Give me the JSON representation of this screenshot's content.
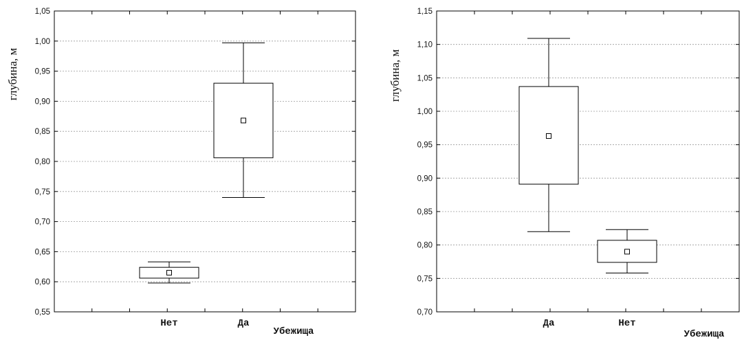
{
  "chart_data": [
    {
      "type": "boxplot",
      "xlabel": "Убежища",
      "ylabel": "глубина, м",
      "ylim": [
        0.55,
        1.05
      ],
      "ytick_step": 0.05,
      "ytick_labels": [
        "0,55",
        "0,60",
        "0,65",
        "0,70",
        "0,75",
        "0,80",
        "0,85",
        "0,90",
        "0,95",
        "1,00",
        "1,05"
      ],
      "grid": true,
      "categories": [
        "Нет",
        "Да"
      ],
      "boxes": [
        {
          "category": "Нет",
          "mean": 0.615,
          "box_low": 0.606,
          "box_high": 0.624,
          "whisker_low": 0.598,
          "whisker_high": 0.633
        },
        {
          "category": "Да",
          "mean": 0.868,
          "box_low": 0.806,
          "box_high": 0.93,
          "whisker_low": 0.74,
          "whisker_high": 0.997
        }
      ]
    },
    {
      "type": "boxplot",
      "xlabel": "Убежища",
      "ylabel": "глубина, м",
      "ylim": [
        0.7,
        1.15
      ],
      "ytick_step": 0.05,
      "ytick_labels": [
        "0,70",
        "0,75",
        "0,80",
        "0,85",
        "0,90",
        "0,95",
        "1,00",
        "1,05",
        "1,10",
        "1,15"
      ],
      "grid": true,
      "categories": [
        "Да",
        "Нет"
      ],
      "boxes": [
        {
          "category": "Да",
          "mean": 0.963,
          "box_low": 0.891,
          "box_high": 1.037,
          "whisker_low": 0.82,
          "whisker_high": 1.109
        },
        {
          "category": "Нет",
          "mean": 0.79,
          "box_low": 0.774,
          "box_high": 0.807,
          "whisker_low": 0.758,
          "whisker_high": 0.823
        }
      ]
    }
  ]
}
